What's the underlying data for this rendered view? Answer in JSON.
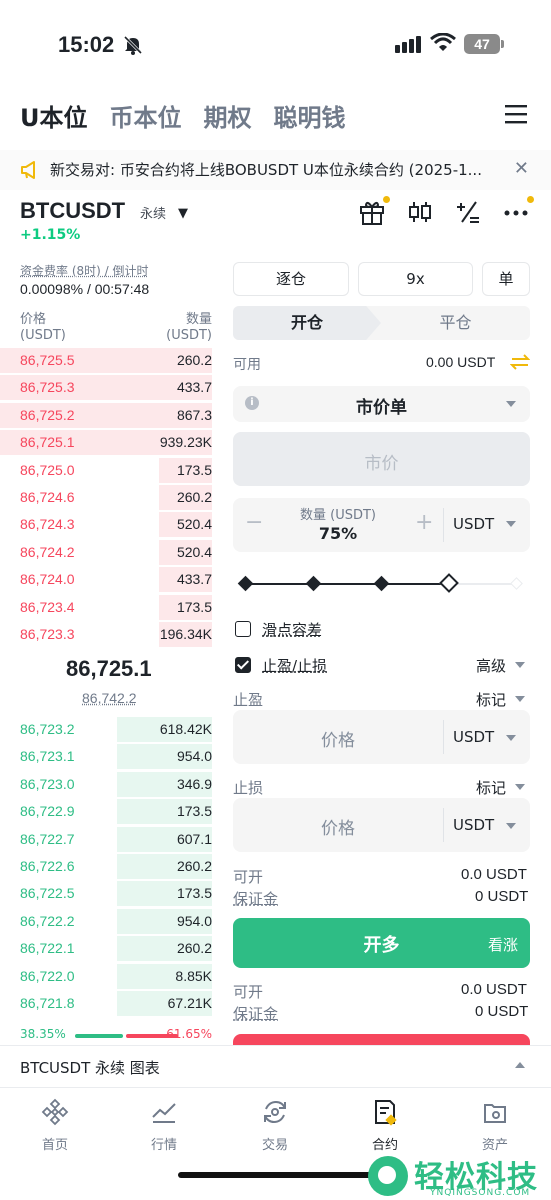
{
  "status": {
    "time": "15:02",
    "battery": "47"
  },
  "top_tabs": [
    "U本位",
    "币本位",
    "期权",
    "聪明钱"
  ],
  "notice": {
    "text": "新交易对: 币安合约将上线BOBUSDT U本位永续合约 (2025-1..."
  },
  "symbol": {
    "name": "BTCUSDT",
    "tag": "永续",
    "change": "+1.15%"
  },
  "funding": {
    "label": "资金费率 (8时) / 倒计时",
    "value": "0.00098% / 00:57:48"
  },
  "orderbook": {
    "price_header": "价格",
    "price_unit": "(USDT)",
    "qty_header": "数量",
    "qty_unit": "(USDT)",
    "asks": [
      {
        "price": "86,725.5",
        "qty": "260.2",
        "depth": 1.0
      },
      {
        "price": "86,725.3",
        "qty": "433.7",
        "depth": 1.0
      },
      {
        "price": "86,725.2",
        "qty": "867.3",
        "depth": 1.0
      },
      {
        "price": "86,725.1",
        "qty": "939.23K",
        "depth": 1.0
      },
      {
        "price": "86,725.0",
        "qty": "173.5",
        "depth": 0.25
      },
      {
        "price": "86,724.6",
        "qty": "260.2",
        "depth": 0.25
      },
      {
        "price": "86,724.3",
        "qty": "520.4",
        "depth": 0.25
      },
      {
        "price": "86,724.2",
        "qty": "520.4",
        "depth": 0.25
      },
      {
        "price": "86,724.0",
        "qty": "433.7",
        "depth": 0.25
      },
      {
        "price": "86,723.4",
        "qty": "173.5",
        "depth": 0.25
      },
      {
        "price": "86,723.3",
        "qty": "196.34K",
        "depth": 0.25
      }
    ],
    "mid_price": "86,725.1",
    "mark_price": "86,742.2",
    "bids": [
      {
        "price": "86,723.2",
        "qty": "618.42K",
        "depth": 0.45
      },
      {
        "price": "86,723.1",
        "qty": "954.0",
        "depth": 0.45
      },
      {
        "price": "86,723.0",
        "qty": "346.9",
        "depth": 0.45
      },
      {
        "price": "86,722.9",
        "qty": "173.5",
        "depth": 0.45
      },
      {
        "price": "86,722.7",
        "qty": "607.1",
        "depth": 0.45
      },
      {
        "price": "86,722.6",
        "qty": "260.2",
        "depth": 0.45
      },
      {
        "price": "86,722.5",
        "qty": "173.5",
        "depth": 0.45
      },
      {
        "price": "86,722.2",
        "qty": "954.0",
        "depth": 0.45
      },
      {
        "price": "86,722.1",
        "qty": "260.2",
        "depth": 0.45
      },
      {
        "price": "86,722.0",
        "qty": "8.85K",
        "depth": 0.45
      },
      {
        "price": "86,721.8",
        "qty": "67.21K",
        "depth": 0.45
      }
    ],
    "buy_ratio": "38.35%",
    "sell_ratio": "61.65%"
  },
  "panel": {
    "margin_mode": "逐仓",
    "leverage": "9x",
    "position_mode": "单",
    "open_label": "开仓",
    "close_label": "平仓",
    "available_label": "可用",
    "available_value": "0.00 USDT",
    "order_type": "市价单",
    "market_placeholder": "市价",
    "qty_label": "数量 (USDT)",
    "qty_value": "75%",
    "qty_unit": "USDT",
    "slider_fraction": 0.75,
    "slippage_label": "滑点容差",
    "tpsl_label": "止盈/止损",
    "advanced_label": "高级",
    "tp_label": "止盈",
    "sl_label": "止损",
    "mark_label": "标记",
    "price_placeholder": "价格",
    "price_unit": "USDT",
    "can_open_label": "可开",
    "can_open_value": "0.0 USDT",
    "margin_label": "保证金",
    "margin_value": "0 USDT",
    "long_button": "开多",
    "long_sub": "看涨"
  },
  "chartbar": {
    "text": "BTCUSDT 永续  图表"
  },
  "nav": [
    {
      "label": "首页",
      "icon": "home-icon"
    },
    {
      "label": "行情",
      "icon": "markets-icon"
    },
    {
      "label": "交易",
      "icon": "trade-icon"
    },
    {
      "label": "合约",
      "icon": "futures-icon"
    },
    {
      "label": "资产",
      "icon": "wallet-icon"
    }
  ],
  "watermark": {
    "big": "轻松科技",
    "small": "YNQINGSONG.COM"
  }
}
